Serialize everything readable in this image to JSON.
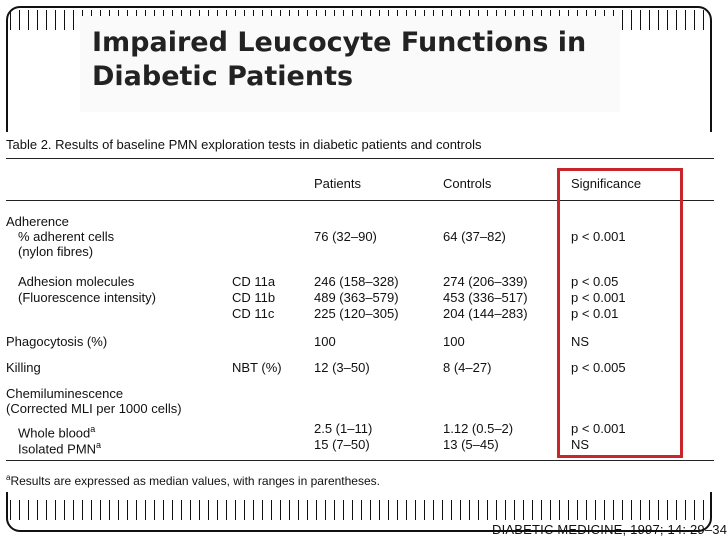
{
  "slide": {
    "title": "Impaired Leucocyte Functions in\nDiabetic Patients"
  },
  "table": {
    "caption": "Table 2.  Results of baseline PMN exploration tests in diabetic patients and controls",
    "headers": {
      "patients": "Patients",
      "controls": "Controls",
      "significance": "Significance"
    },
    "labels": {
      "adherence": "Adherence",
      "adherent_cells": "% adherent cells",
      "nylon": "(nylon fibres)",
      "adhesion": "Adhesion molecules",
      "fluorescence": "(Fluorescence intensity)",
      "phagocytosis": "Phagocytosis (%)",
      "killing": "Killing",
      "chemi": "Chemiluminescence",
      "corrected": "(Corrected MLI per 1000 cells)",
      "whole_blood": "Whole blood",
      "whole_blood_sup": "a",
      "isolated_pmn": "Isolated PMN",
      "isolated_pmn_sup": "a"
    },
    "subs": {
      "cd11a": "CD 11a",
      "cd11b": "CD 11b",
      "cd11c": "CD 11c",
      "nbt": "NBT (%)"
    },
    "values": {
      "adherent": {
        "patients": "76  (32–90)",
        "controls": "64  (37–82)",
        "sig": "p < 0.001"
      },
      "cd11a": {
        "patients": "246  (158–328)",
        "controls": "274  (206–339)",
        "sig": "p < 0.05"
      },
      "cd11b": {
        "patients": "489  (363–579)",
        "controls": "453  (336–517)",
        "sig": "p < 0.001"
      },
      "cd11c": {
        "patients": "225  (120–305)",
        "controls": "204  (144–283)",
        "sig": "p < 0.01"
      },
      "phago": {
        "patients": "100",
        "controls": "100",
        "sig": "NS"
      },
      "killing": {
        "patients": "12  (3–50)",
        "controls": "8  (4–27)",
        "sig": "p < 0.005"
      },
      "whole_blood": {
        "patients": "2.5  (1–11)",
        "controls": "1.12  (0.5–2)",
        "sig": "p < 0.001"
      },
      "isolated": {
        "patients": "15  (7–50)",
        "controls": "13  (5–45)",
        "sig": "NS"
      }
    },
    "footnote_mark": "a",
    "footnote": "Results are expressed as median values, with ranges in parentheses."
  },
  "citation": "DIABETIC MEDICINE, 1997; 14: 29–34",
  "highlight_color": "#c8262a"
}
